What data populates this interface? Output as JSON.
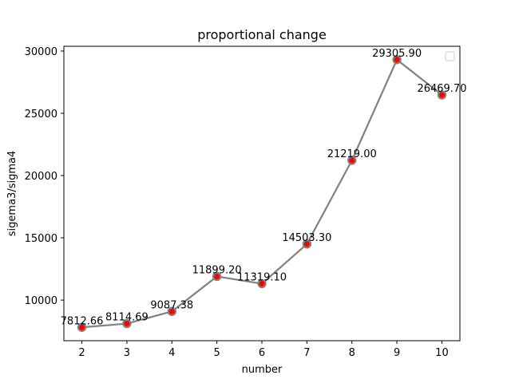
{
  "chart_data": {
    "type": "line",
    "title": "proportional change",
    "xlabel": "number",
    "ylabel": "sigema3/sigma4",
    "x": [
      2,
      3,
      4,
      5,
      6,
      7,
      8,
      9,
      10
    ],
    "series": [
      {
        "values": [
          7812.66,
          8114.69,
          9087.38,
          11899.2,
          11319.1,
          14503.3,
          21219.0,
          29305.9,
          26469.7
        ],
        "labels": [
          "7812.66",
          "8114.69",
          "9087.38",
          "11899.20",
          "11319.10",
          "14503.30",
          "21219.00",
          "29305.90",
          "26469.70"
        ],
        "line_color": "#808080",
        "marker_color": "#ff0000",
        "marker_edge_color": "#808080"
      }
    ],
    "xticks": [
      2,
      3,
      4,
      5,
      6,
      7,
      8,
      9,
      10
    ],
    "xtick_labels": [
      "2",
      "3",
      "4",
      "5",
      "6",
      "7",
      "8",
      "9",
      "10"
    ],
    "yticks": [
      10000,
      15000,
      20000,
      25000,
      30000
    ],
    "ytick_labels": [
      "10000",
      "15000",
      "20000",
      "25000",
      "30000"
    ],
    "xlim": [
      1.6,
      10.4
    ],
    "ylim": [
      6740,
      30380
    ],
    "grid": false,
    "legend": "top-right (empty)"
  }
}
